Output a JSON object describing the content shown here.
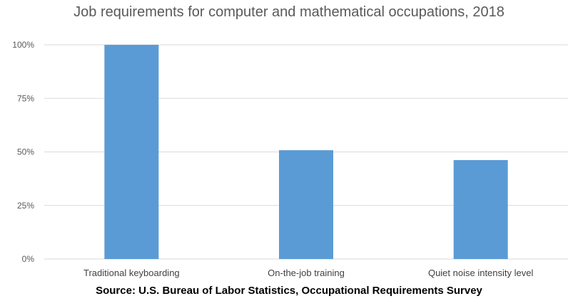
{
  "chart_data": {
    "type": "bar",
    "title": "Job requirements for computer and mathematical occupations, 2018",
    "categories": [
      "Traditional keyboarding",
      "On-the-job training",
      "Quiet noise intensity level"
    ],
    "values": [
      100,
      50.8,
      46.2
    ],
    "y_unit": "%",
    "ylim": [
      0,
      100
    ],
    "yticks": [
      "0%",
      "25%",
      "50%",
      "75%",
      "100%"
    ],
    "ytick_values": [
      0,
      25,
      50,
      75,
      100
    ],
    "grid": true,
    "bar_color": "#5B9BD5",
    "source": "Source: U.S. Bureau of Labor Statistics, Occupational Requirements Survey"
  }
}
